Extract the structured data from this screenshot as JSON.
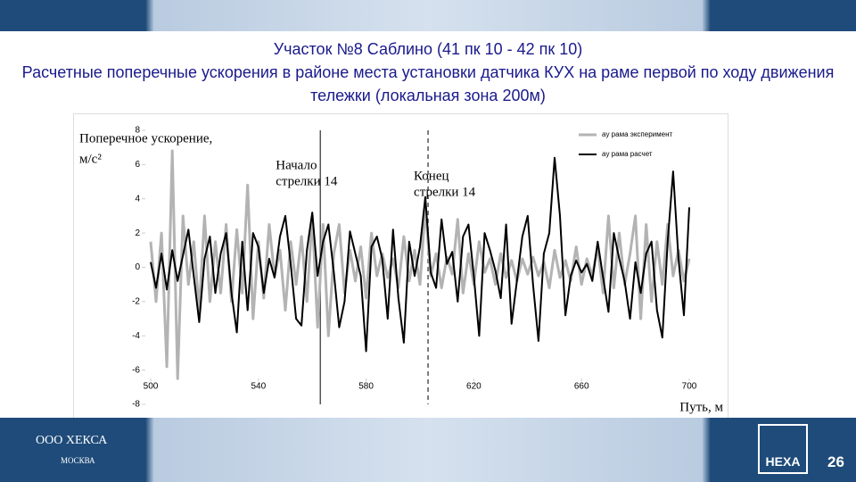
{
  "slide": {
    "title": "Участок №8 Саблино (41 пк 10 - 42 пк 10)",
    "subtitle": "Расчетные поперечные ускорения в районе места установки датчика КУХ на раме первой по ходу движения тележки (локальная зона 200м)",
    "company": "ООО ХЕКСА",
    "city": "МОСКВА",
    "logo": "HEXA",
    "page_number": 26
  },
  "chart_data": {
    "type": "line",
    "ylabel": [
      "Поперечное ускорение,",
      "м/с²"
    ],
    "xlabel": "Путь, м",
    "x": [
      500,
      502,
      504,
      506,
      508,
      510,
      512,
      514,
      516,
      518,
      520,
      522,
      524,
      526,
      528,
      530,
      532,
      534,
      536,
      538,
      540,
      542,
      544,
      546,
      548,
      550,
      552,
      554,
      556,
      558,
      560,
      562,
      564,
      566,
      568,
      570,
      572,
      574,
      576,
      578,
      580,
      582,
      584,
      586,
      588,
      590,
      592,
      594,
      596,
      598,
      600,
      602,
      604,
      606,
      608,
      610,
      612,
      614,
      616,
      618,
      620,
      622,
      624,
      626,
      628,
      630,
      632,
      634,
      636,
      638,
      640,
      642,
      644,
      646,
      648,
      650,
      652,
      654,
      656,
      658,
      660,
      662,
      664,
      666,
      668,
      670,
      672,
      674,
      676,
      678,
      680,
      682,
      684,
      686,
      688,
      690,
      692,
      694,
      696,
      698,
      700
    ],
    "series": [
      {
        "name": "ay рама эксперимент",
        "color": "#b3b3b3",
        "values": [
          1.5,
          -2.0,
          2.0,
          -5.8,
          6.8,
          -6.5,
          3.0,
          -1.0,
          1.5,
          -2.5,
          3.0,
          -2.0,
          1.5,
          -1.5,
          2.5,
          -2.0,
          2.2,
          -1.5,
          4.8,
          -3.0,
          1.5,
          -1.8,
          2.5,
          -0.5,
          1.0,
          -2.5,
          1.5,
          -1.0,
          1.8,
          -2.0,
          3.0,
          -3.5,
          2.5,
          -4.0,
          0.8,
          2.5,
          -1.5,
          1.0,
          -0.8,
          1.2,
          -1.8,
          2.0,
          -0.5,
          0.8,
          -0.6,
          0.5,
          -1.2,
          1.8,
          -0.8,
          1.0,
          -1.0,
          3.5,
          -0.5,
          0.8,
          -1.2,
          0.6,
          -0.4,
          2.8,
          -1.5,
          0.8,
          -1.0,
          1.5,
          -0.3,
          0.5,
          -1.0,
          0.8,
          -0.6,
          0.4,
          -0.8,
          0.5,
          -0.4,
          0.6,
          -0.5,
          0.3,
          -1.2,
          1.0,
          -0.6,
          0.4,
          -0.8,
          1.2,
          -1.0,
          0.5,
          -0.5,
          1.2,
          -1.5,
          3.0,
          -1.2,
          2.0,
          -1.0,
          0.8,
          3.0,
          -3.0,
          2.5,
          -2.0,
          1.5,
          -1.0,
          2.5,
          -0.5,
          1.0,
          -0.8,
          0.5
        ]
      },
      {
        "name": "ay рама расчет",
        "color": "#000000",
        "values": [
          0.3,
          -1.2,
          0.8,
          -1.3,
          1.0,
          -0.8,
          0.7,
          2.2,
          -0.5,
          -3.2,
          0.5,
          1.8,
          -1.5,
          0.8,
          2.0,
          -1.5,
          -3.8,
          1.5,
          -2.5,
          2.0,
          1.2,
          -1.5,
          0.5,
          -0.6,
          1.8,
          3.0,
          0.2,
          -3.0,
          -3.4,
          1.0,
          3.2,
          -0.5,
          1.5,
          2.5,
          -0.3,
          -3.5,
          -2.0,
          2.1,
          0.8,
          -0.5,
          -4.9,
          1.2,
          1.8,
          0.5,
          -3.0,
          2.2,
          -1.8,
          -4.4,
          1.5,
          -0.5,
          1.2,
          4.1,
          -0.3,
          -1.2,
          2.8,
          0.2,
          0.9,
          -2.0,
          1.8,
          2.5,
          -0.5,
          -4.0,
          2.0,
          1.0,
          -0.2,
          -1.8,
          2.5,
          -3.3,
          -0.8,
          1.8,
          3.0,
          -1.0,
          -4.3,
          0.8,
          2.0,
          6.4,
          3.0,
          -2.8,
          -0.5,
          0.4,
          -0.3,
          0.2,
          -0.8,
          1.5,
          -0.6,
          -2.6,
          2.0,
          0.5,
          -0.8,
          -3.0,
          0.3,
          -1.5,
          0.8,
          1.5,
          -2.5,
          -4.1,
          1.5,
          5.6,
          0.5,
          -2.8,
          3.5
        ]
      }
    ],
    "xlim": [
      500,
      700
    ],
    "xticks": [
      500,
      540,
      580,
      620,
      660,
      700
    ],
    "ylim": [
      -8,
      8
    ],
    "yticks": [
      -8,
      -6,
      -4,
      -2,
      0,
      2,
      4,
      6,
      8
    ],
    "annotations": [
      {
        "x": 563,
        "lines": [
          "Начало",
          "стрелки 14"
        ],
        "style": "solid"
      },
      {
        "x": 603,
        "lines": [
          "Конец",
          "стрелки 14"
        ],
        "style": "dashed"
      }
    ],
    "legend": "upper right",
    "grid": false
  }
}
